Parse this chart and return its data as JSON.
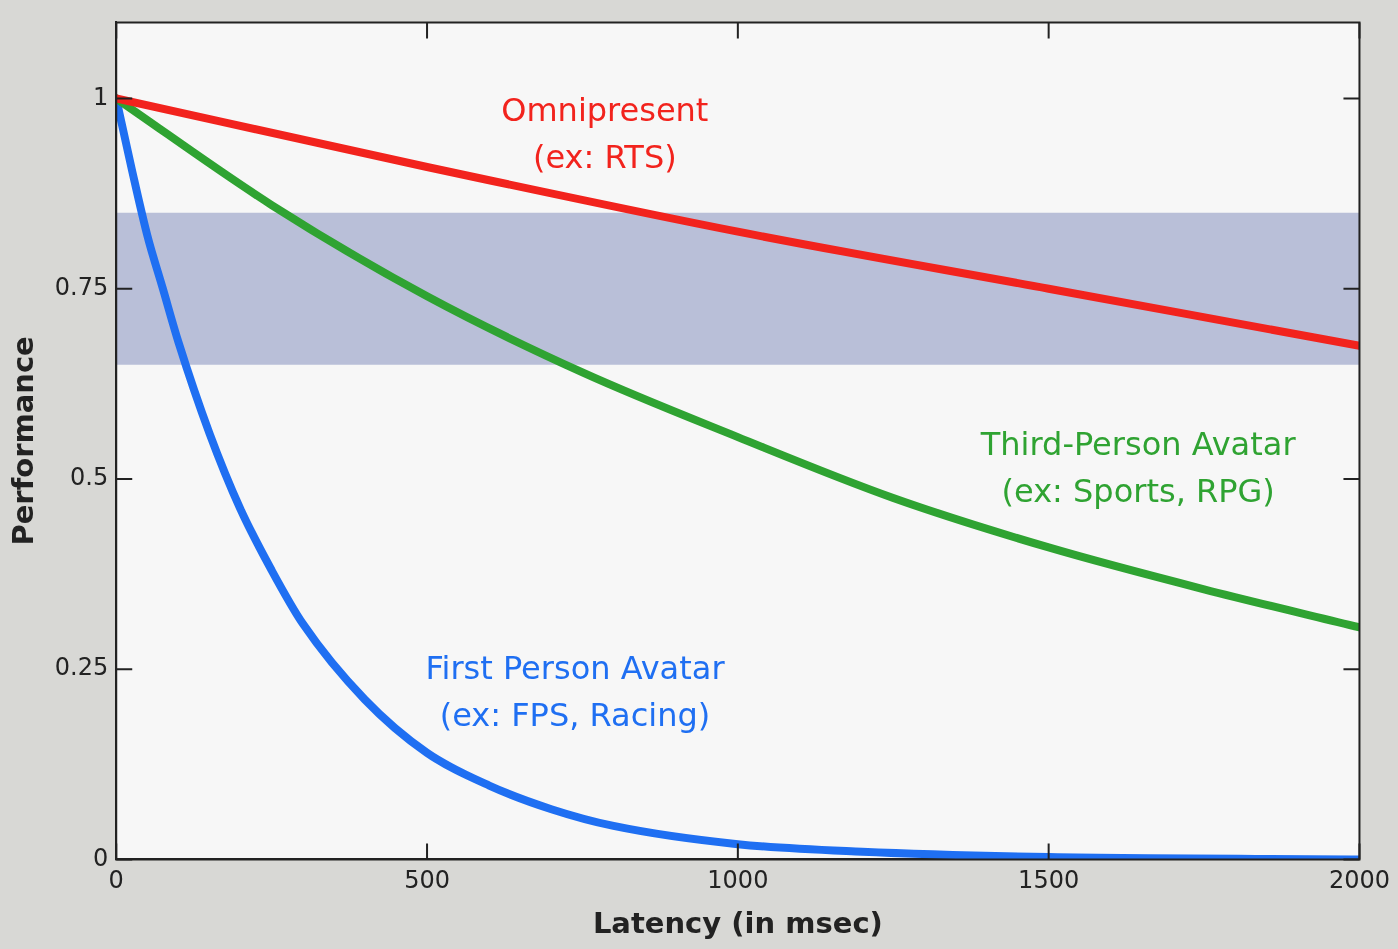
{
  "chart_data": {
    "type": "line",
    "xlabel": "Latency (in msec)",
    "ylabel": "Performance",
    "xlim": [
      0,
      2000
    ],
    "xticks": [
      0,
      500,
      1000,
      1500,
      2000
    ],
    "ylim": [
      0,
      1.1
    ],
    "yticks": [
      0,
      0.25,
      0.5,
      0.75,
      1
    ],
    "grid": false,
    "legend": false,
    "marker": "none",
    "line_style": "solid",
    "bands": [
      {
        "axis": "y",
        "from": 0.65,
        "to": 0.85,
        "color": "#b9bfd8"
      }
    ],
    "series": [
      {
        "name": "Omnipresent\n(ex: RTS)",
        "color": "#f2231d",
        "x": [
          0,
          500,
          1000,
          1500,
          2000
        ],
        "values": [
          1,
          0.91,
          0.825,
          0.75,
          0.675
        ]
      },
      {
        "name": "Third-Person Avatar\n(ex: Sports, RPG)",
        "color": "#2fa332",
        "x": [
          0,
          250,
          500,
          750,
          1000,
          1250,
          1500,
          1750,
          2000
        ],
        "values": [
          1,
          0.86,
          0.74,
          0.64,
          0.555,
          0.475,
          0.41,
          0.355,
          0.305
        ]
      },
      {
        "name": "First Person Avatar\n(ex: FPS, Racing)",
        "color": "#1f6ff2",
        "x": [
          0,
          25,
          50,
          75,
          100,
          150,
          200,
          250,
          300,
          400,
          500,
          600,
          700,
          800,
          1000,
          1200,
          1500,
          2000
        ],
        "values": [
          1,
          0.907,
          0.82,
          0.75,
          0.68,
          0.56,
          0.46,
          0.38,
          0.31,
          0.21,
          0.14,
          0.097,
          0.066,
          0.044,
          0.02,
          0.01,
          0.003,
          0
        ]
      }
    ]
  }
}
